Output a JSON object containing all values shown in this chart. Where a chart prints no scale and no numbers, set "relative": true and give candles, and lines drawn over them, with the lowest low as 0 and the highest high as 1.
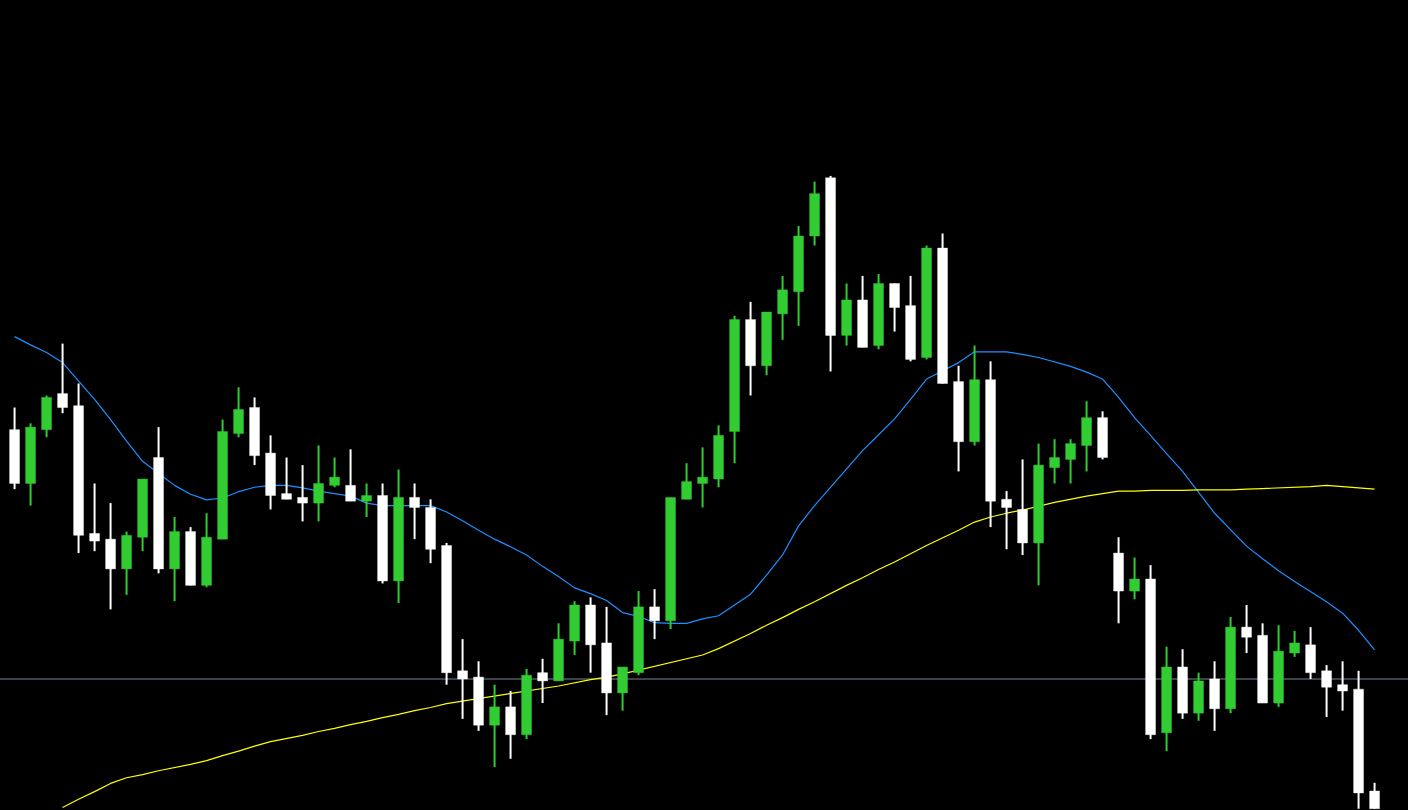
{
  "chart_data": {
    "type": "candlestick",
    "relative": true,
    "categories": [
      null,
      null,
      null,
      null,
      null,
      null,
      null,
      null,
      null,
      null,
      null,
      null,
      null,
      null,
      null,
      null,
      null,
      null,
      null,
      null,
      null,
      null,
      null,
      null,
      null,
      null,
      null,
      null,
      null,
      null,
      null,
      null,
      null,
      null,
      null,
      null,
      null,
      null,
      null,
      null,
      null,
      null,
      null,
      null,
      null,
      null,
      null,
      null,
      null,
      null,
      null,
      null,
      null,
      null,
      null,
      null,
      null,
      null,
      null,
      null,
      null,
      null,
      null,
      null,
      null,
      null,
      null,
      null,
      null,
      null,
      null,
      null,
      null,
      null,
      null,
      null,
      null,
      null,
      null,
      null,
      null,
      null,
      null,
      null,
      null,
      null
    ],
    "ohlc": [
      [
        0.599,
        0.634,
        0.505,
        0.514
      ],
      [
        0.514,
        0.609,
        0.479,
        0.603
      ],
      [
        0.599,
        0.653,
        0.587,
        0.65
      ],
      [
        0.656,
        0.735,
        0.625,
        0.634
      ],
      [
        0.637,
        0.672,
        0.404,
        0.432
      ],
      [
        0.435,
        0.514,
        0.407,
        0.423
      ],
      [
        0.426,
        0.483,
        0.315,
        0.379
      ],
      [
        0.379,
        0.438,
        0.338,
        0.432
      ],
      [
        0.429,
        0.521,
        0.407,
        0.521
      ],
      [
        0.555,
        0.603,
        0.372,
        0.379
      ],
      [
        0.379,
        0.461,
        0.328,
        0.438
      ],
      [
        0.438,
        0.445,
        0.353,
        0.353
      ],
      [
        0.353,
        0.467,
        0.35,
        0.429
      ],
      [
        0.426,
        0.615,
        0.426,
        0.596
      ],
      [
        0.593,
        0.666,
        0.587,
        0.631
      ],
      [
        0.634,
        0.65,
        0.543,
        0.558
      ],
      [
        0.562,
        0.59,
        0.473,
        0.495
      ],
      [
        0.498,
        0.555,
        0.489,
        0.489
      ],
      [
        0.492,
        0.543,
        0.454,
        0.483
      ],
      [
        0.483,
        0.574,
        0.454,
        0.514
      ],
      [
        0.511,
        0.555,
        0.508,
        0.524
      ],
      [
        0.511,
        0.568,
        0.486,
        0.486
      ],
      [
        0.486,
        0.514,
        0.461,
        0.495
      ],
      [
        0.495,
        0.514,
        0.356,
        0.36
      ],
      [
        0.36,
        0.536,
        0.325,
        0.492
      ],
      [
        0.492,
        0.514,
        0.426,
        0.476
      ],
      [
        0.476,
        0.489,
        0.388,
        0.41
      ],
      [
        0.416,
        0.42,
        0.196,
        0.215
      ],
      [
        0.218,
        0.268,
        0.142,
        0.205
      ],
      [
        0.208,
        0.233,
        0.123,
        0.132
      ],
      [
        0.132,
        0.196,
        0.066,
        0.161
      ],
      [
        0.161,
        0.186,
        0.079,
        0.117
      ],
      [
        0.117,
        0.221,
        0.11,
        0.211
      ],
      [
        0.215,
        0.237,
        0.167,
        0.202
      ],
      [
        0.202,
        0.293,
        0.202,
        0.268
      ],
      [
        0.265,
        0.328,
        0.243,
        0.322
      ],
      [
        0.322,
        0.334,
        0.215,
        0.259
      ],
      [
        0.262,
        0.319,
        0.148,
        0.183
      ],
      [
        0.183,
        0.224,
        0.155,
        0.224
      ],
      [
        0.215,
        0.344,
        0.211,
        0.319
      ],
      [
        0.319,
        0.347,
        0.268,
        0.297
      ],
      [
        0.297,
        0.492,
        0.284,
        0.492
      ],
      [
        0.489,
        0.546,
        0.489,
        0.517
      ],
      [
        0.514,
        0.571,
        0.476,
        0.524
      ],
      [
        0.521,
        0.606,
        0.508,
        0.59
      ],
      [
        0.596,
        0.779,
        0.546,
        0.773
      ],
      [
        0.773,
        0.801,
        0.653,
        0.7
      ],
      [
        0.7,
        0.785,
        0.685,
        0.785
      ],
      [
        0.782,
        0.842,
        0.741,
        0.82
      ],
      [
        0.817,
        0.921,
        0.763,
        0.905
      ],
      [
        0.905,
        0.991,
        0.89,
        0.972
      ],
      [
        0.997,
        1,
        0.691,
        0.748
      ],
      [
        0.748,
        0.83,
        0.732,
        0.804
      ],
      [
        0.804,
        0.842,
        0.729,
        0.729
      ],
      [
        0.732,
        0.845,
        0.726,
        0.83
      ],
      [
        0.83,
        0.83,
        0.754,
        0.792
      ],
      [
        0.795,
        0.842,
        0.707,
        0.71
      ],
      [
        0.713,
        0.89,
        0.71,
        0.886
      ],
      [
        0.886,
        0.909,
        0.672,
        0.672
      ],
      [
        0.675,
        0.7,
        0.533,
        0.58
      ],
      [
        0.58,
        0.732,
        0.574,
        0.678
      ],
      [
        0.678,
        0.707,
        0.445,
        0.486
      ],
      [
        0.489,
        0.502,
        0.41,
        0.476
      ],
      [
        0.473,
        0.552,
        0.401,
        0.42
      ],
      [
        0.42,
        0.577,
        0.353,
        0.543
      ],
      [
        0.539,
        0.584,
        0.514,
        0.555
      ],
      [
        0.552,
        0.584,
        0.514,
        0.577
      ],
      [
        0.574,
        0.644,
        0.533,
        0.618
      ],
      [
        0.618,
        0.628,
        0.552,
        0.555
      ],
      [
        0.404,
        0.429,
        0.293,
        0.344
      ],
      [
        0.344,
        0.397,
        0.331,
        0.363
      ],
      [
        0.363,
        0.385,
        0.11,
        0.117
      ],
      [
        0.12,
        0.256,
        0.091,
        0.224
      ],
      [
        0.224,
        0.252,
        0.142,
        0.151
      ],
      [
        0.151,
        0.215,
        0.139,
        0.202
      ],
      [
        0.205,
        0.233,
        0.123,
        0.158
      ],
      [
        0.158,
        0.303,
        0.151,
        0.287
      ],
      [
        0.287,
        0.322,
        0.246,
        0.271
      ],
      [
        0.274,
        0.293,
        0.167,
        0.167
      ],
      [
        0.167,
        0.29,
        0.161,
        0.249
      ],
      [
        0.246,
        0.281,
        0.24,
        0.262
      ],
      [
        0.259,
        0.287,
        0.205,
        0.215
      ],
      [
        0.218,
        0.227,
        0.145,
        0.192
      ],
      [
        0.196,
        0.233,
        0.155,
        0.186
      ],
      [
        0.189,
        0.218,
        0,
        0.025
      ],
      [
        0.028,
        0.041,
        0,
        0
      ]
    ],
    "colors": [
      "#ffffff",
      "#32cd32",
      "#32cd32",
      "#ffffff",
      "#ffffff",
      "#ffffff",
      "#ffffff",
      "#32cd32",
      "#32cd32",
      "#ffffff",
      "#32cd32",
      "#ffffff",
      "#32cd32",
      "#32cd32",
      "#32cd32",
      "#ffffff",
      "#ffffff",
      "#ffffff",
      "#ffffff",
      "#32cd32",
      "#32cd32",
      "#ffffff",
      "#32cd32",
      "#ffffff",
      "#32cd32",
      "#ffffff",
      "#ffffff",
      "#ffffff",
      "#ffffff",
      "#ffffff",
      "#32cd32",
      "#ffffff",
      "#32cd32",
      "#ffffff",
      "#32cd32",
      "#32cd32",
      "#ffffff",
      "#ffffff",
      "#32cd32",
      "#32cd32",
      "#ffffff",
      "#32cd32",
      "#32cd32",
      "#32cd32",
      "#32cd32",
      "#32cd32",
      "#ffffff",
      "#32cd32",
      "#32cd32",
      "#32cd32",
      "#32cd32",
      "#ffffff",
      "#32cd32",
      "#ffffff",
      "#32cd32",
      "#ffffff",
      "#ffffff",
      "#32cd32",
      "#ffffff",
      "#ffffff",
      "#32cd32",
      "#ffffff",
      "#ffffff",
      "#ffffff",
      "#32cd32",
      "#32cd32",
      "#32cd32",
      "#32cd32",
      "#ffffff",
      "#ffffff",
      "#32cd32",
      "#ffffff",
      "#32cd32",
      "#ffffff",
      "#32cd32",
      "#ffffff",
      "#32cd32",
      "#ffffff",
      "#ffffff",
      "#32cd32",
      "#32cd32",
      "#ffffff",
      "#ffffff",
      "#ffffff",
      "#ffffff",
      "#ffffff"
    ],
    "series": [
      {
        "type": "line",
        "color": "#1e90ff",
        "values": [
          0.746,
          0.733,
          0.721,
          0.705,
          0.676,
          0.647,
          0.615,
          0.581,
          0.549,
          0.53,
          0.511,
          0.497,
          0.488,
          0.491,
          0.501,
          0.508,
          0.511,
          0.511,
          0.507,
          0.502,
          0.498,
          0.494,
          0.483,
          0.479,
          0.479,
          0.479,
          0.479,
          0.469,
          0.455,
          0.44,
          0.426,
          0.414,
          0.401,
          0.383,
          0.367,
          0.349,
          0.34,
          0.329,
          0.31,
          0.304,
          0.294,
          0.293,
          0.293,
          0.3,
          0.305,
          0.322,
          0.339,
          0.369,
          0.401,
          0.447,
          0.479,
          0.508,
          0.537,
          0.566,
          0.591,
          0.616,
          0.647,
          0.679,
          0.692,
          0.705,
          0.722,
          0.722,
          0.722,
          0.718,
          0.713,
          0.706,
          0.699,
          0.69,
          0.679,
          0.65,
          0.618,
          0.59,
          0.561,
          0.533,
          0.5,
          0.467,
          0.441,
          0.415,
          0.395,
          0.376,
          0.359,
          0.343,
          0.327,
          0.309,
          0.282,
          0.251
        ]
      },
      {
        "type": "line",
        "color": "#ffff00",
        "values": [
          null,
          null,
          null,
          0.002,
          0.015,
          0.027,
          0.04,
          0.049,
          0.054,
          0.06,
          0.065,
          0.07,
          0.076,
          0.084,
          0.091,
          0.099,
          0.106,
          0.111,
          0.116,
          0.122,
          0.127,
          0.133,
          0.138,
          0.144,
          0.149,
          0.155,
          0.16,
          0.166,
          0.17,
          0.174,
          0.178,
          0.182,
          0.186,
          0.19,
          0.194,
          0.199,
          0.204,
          0.208,
          0.213,
          0.219,
          0.225,
          0.231,
          0.237,
          0.243,
          0.253,
          0.265,
          0.277,
          0.29,
          0.302,
          0.315,
          0.327,
          0.34,
          0.353,
          0.365,
          0.378,
          0.39,
          0.403,
          0.416,
          0.428,
          0.44,
          0.453,
          0.461,
          0.467,
          0.472,
          0.478,
          0.484,
          0.489,
          0.494,
          0.498,
          0.502,
          0.502,
          0.503,
          0.503,
          0.503,
          0.504,
          0.504,
          0.504,
          0.505,
          0.506,
          0.507,
          0.508,
          0.509,
          0.511,
          0.509,
          0.507,
          0.505
        ]
      }
    ],
    "ref_lines": [
      {
        "axis": "y",
        "value": 0.205,
        "color": "#778899"
      }
    ]
  }
}
